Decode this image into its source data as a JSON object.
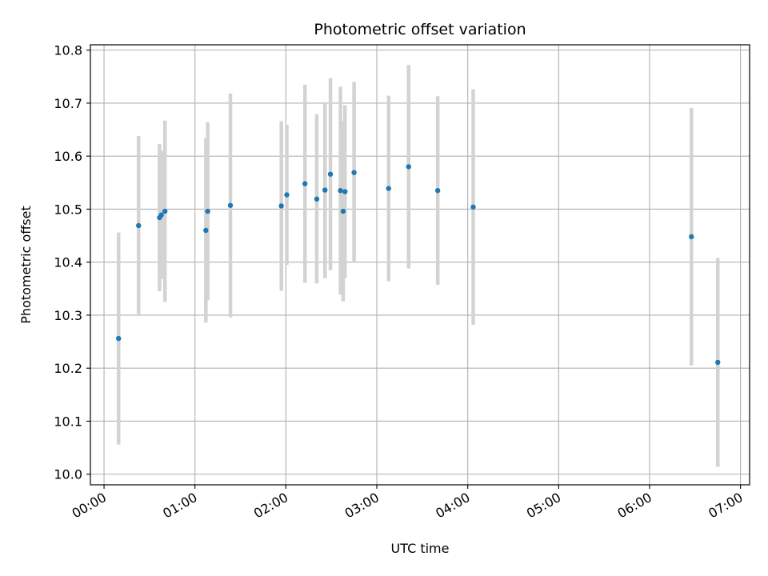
{
  "chart_data": {
    "type": "scatter",
    "title": "Photometric offset variation",
    "xlabel": "UTC time",
    "ylabel": "Photometric offset",
    "x_unit": "hours UTC",
    "xlim": [
      -0.15,
      7.1
    ],
    "ylim": [
      9.98,
      10.81
    ],
    "x_ticks": [
      {
        "value": 0,
        "label": "00:00"
      },
      {
        "value": 1,
        "label": "01:00"
      },
      {
        "value": 2,
        "label": "02:00"
      },
      {
        "value": 3,
        "label": "03:00"
      },
      {
        "value": 4,
        "label": "04:00"
      },
      {
        "value": 5,
        "label": "05:00"
      },
      {
        "value": 6,
        "label": "06:00"
      },
      {
        "value": 7,
        "label": "07:00"
      }
    ],
    "y_ticks": [
      {
        "value": 10.0,
        "label": "10.0"
      },
      {
        "value": 10.1,
        "label": "10.1"
      },
      {
        "value": 10.2,
        "label": "10.2"
      },
      {
        "value": 10.3,
        "label": "10.3"
      },
      {
        "value": 10.4,
        "label": "10.4"
      },
      {
        "value": 10.5,
        "label": "10.5"
      },
      {
        "value": 10.6,
        "label": "10.6"
      },
      {
        "value": 10.7,
        "label": "10.7"
      },
      {
        "value": 10.8,
        "label": "10.8"
      }
    ],
    "grid": true,
    "colors": {
      "point": "#1f77b4",
      "errorbar": "#d3d3d3",
      "grid": "#b0b0b0"
    },
    "points": [
      {
        "x": 0.16,
        "y": 10.256,
        "lo": 10.056,
        "hi": 10.456
      },
      {
        "x": 0.38,
        "y": 10.469,
        "lo": 10.3,
        "hi": 10.638
      },
      {
        "x": 0.61,
        "y": 10.484,
        "lo": 10.345,
        "hi": 10.623
      },
      {
        "x": 0.63,
        "y": 10.489,
        "lo": 10.368,
        "hi": 10.61
      },
      {
        "x": 0.67,
        "y": 10.496,
        "lo": 10.325,
        "hi": 10.667
      },
      {
        "x": 1.12,
        "y": 10.46,
        "lo": 10.286,
        "hi": 10.634
      },
      {
        "x": 1.14,
        "y": 10.496,
        "lo": 10.328,
        "hi": 10.664
      },
      {
        "x": 1.39,
        "y": 10.507,
        "lo": 10.296,
        "hi": 10.718
      },
      {
        "x": 1.95,
        "y": 10.506,
        "lo": 10.346,
        "hi": 10.666
      },
      {
        "x": 2.01,
        "y": 10.527,
        "lo": 10.395,
        "hi": 10.659
      },
      {
        "x": 2.21,
        "y": 10.548,
        "lo": 10.361,
        "hi": 10.735
      },
      {
        "x": 2.34,
        "y": 10.519,
        "lo": 10.36,
        "hi": 10.679
      },
      {
        "x": 2.43,
        "y": 10.536,
        "lo": 10.37,
        "hi": 10.702
      },
      {
        "x": 2.49,
        "y": 10.566,
        "lo": 10.385,
        "hi": 10.747
      },
      {
        "x": 2.6,
        "y": 10.535,
        "lo": 10.339,
        "hi": 10.731
      },
      {
        "x": 2.63,
        "y": 10.496,
        "lo": 10.326,
        "hi": 10.666
      },
      {
        "x": 2.65,
        "y": 10.533,
        "lo": 10.37,
        "hi": 10.696
      },
      {
        "x": 2.75,
        "y": 10.569,
        "lo": 10.4,
        "hi": 10.74
      },
      {
        "x": 3.13,
        "y": 10.539,
        "lo": 10.364,
        "hi": 10.714
      },
      {
        "x": 3.35,
        "y": 10.58,
        "lo": 10.388,
        "hi": 10.772
      },
      {
        "x": 3.67,
        "y": 10.535,
        "lo": 10.357,
        "hi": 10.713
      },
      {
        "x": 4.06,
        "y": 10.504,
        "lo": 10.282,
        "hi": 10.726
      },
      {
        "x": 6.46,
        "y": 10.448,
        "lo": 10.205,
        "hi": 10.691
      },
      {
        "x": 6.75,
        "y": 10.211,
        "lo": 10.014,
        "hi": 10.408
      }
    ]
  }
}
